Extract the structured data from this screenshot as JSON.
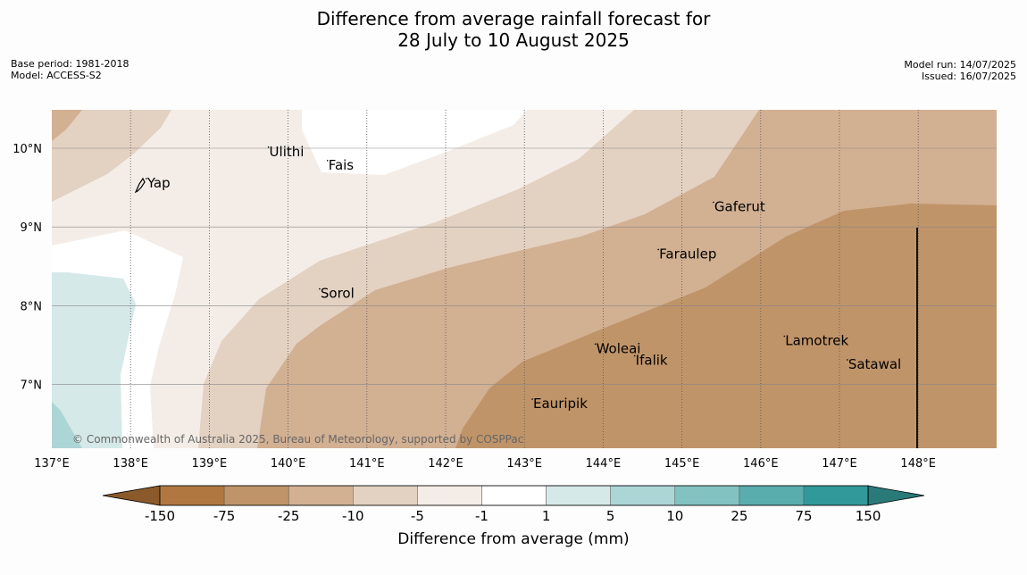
{
  "title": {
    "line1": "Difference from average rainfall forecast for",
    "line2": "28 July to 10 August 2025"
  },
  "meta_left": {
    "base_period": "Base period: 1981-2018",
    "model": "Model: ACCESS-S2"
  },
  "meta_right": {
    "model_run": "Model run: 14/07/2025",
    "issued": "Issued: 16/07/2025"
  },
  "map": {
    "lon_range": [
      137.0,
      149.0
    ],
    "lat_range": [
      6.2,
      10.5
    ],
    "x_ticks": [
      "137°E",
      "138°E",
      "139°E",
      "140°E",
      "141°E",
      "142°E",
      "143°E",
      "144°E",
      "145°E",
      "146°E",
      "147°E",
      "148°E"
    ],
    "y_ticks": [
      "10°N",
      "9°N",
      "8°N",
      "7°N"
    ],
    "places": [
      {
        "name": "Ulithi",
        "lon": 139.75,
        "lat": 9.9
      },
      {
        "name": "Fais",
        "lon": 140.5,
        "lat": 9.73
      },
      {
        "name": "Yap",
        "lon": 138.2,
        "lat": 9.5
      },
      {
        "name": "Gaferut",
        "lon": 145.4,
        "lat": 9.2
      },
      {
        "name": "Faraulep",
        "lon": 144.7,
        "lat": 8.6
      },
      {
        "name": "Sorol",
        "lon": 140.4,
        "lat": 8.1
      },
      {
        "name": "Woleai",
        "lon": 143.9,
        "lat": 7.4
      },
      {
        "name": "Ifalik",
        "lon": 144.4,
        "lat": 7.25
      },
      {
        "name": "Lamotrek",
        "lon": 146.3,
        "lat": 7.5
      },
      {
        "name": "Satawal",
        "lon": 147.1,
        "lat": 7.2
      },
      {
        "name": "Eauripik",
        "lon": 143.1,
        "lat": 6.7
      }
    ],
    "copyright": "© Commonwealth of Australia 2025, Bureau of Meteorology, supported by COSPPac"
  },
  "colorbar": {
    "label": "Difference from average (mm)",
    "ticks": [
      "-150",
      "-75",
      "-25",
      "-10",
      "-5",
      "-1",
      "1",
      "5",
      "10",
      "25",
      "75",
      "150"
    ],
    "colors": [
      "#b07840",
      "#c09469",
      "#d2b092",
      "#e3d1c1",
      "#f4ede7",
      "#ffffff",
      "#d5e9e8",
      "#acd5d6",
      "#82c3c2",
      "#59adad",
      "#319999"
    ],
    "extend_low_color": "#8b5a2b",
    "extend_high_color": "#2a7a7a"
  }
}
